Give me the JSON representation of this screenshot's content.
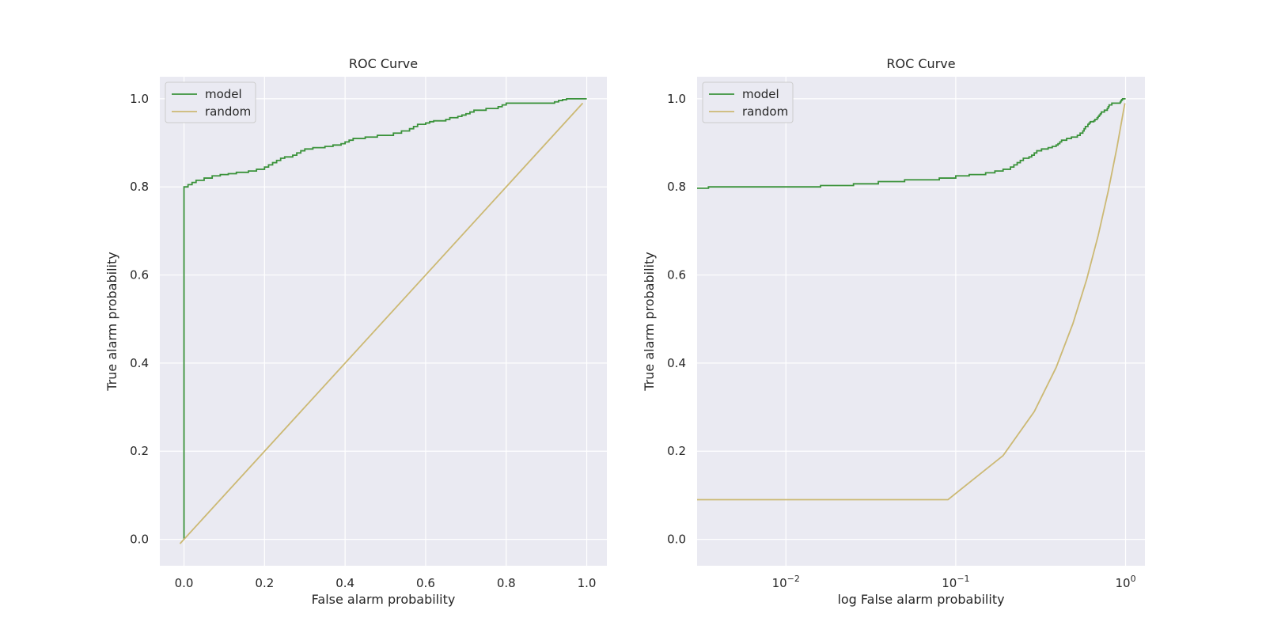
{
  "chart_data": [
    {
      "type": "line",
      "title": "ROC Curve",
      "xlabel": "False alarm probability",
      "ylabel": "True alarm probability",
      "xscale": "linear",
      "xlim": [
        -0.06,
        1.05
      ],
      "ylim": [
        -0.06,
        1.05
      ],
      "xticks": [
        0.0,
        0.2,
        0.4,
        0.6,
        0.8,
        1.0
      ],
      "xtick_labels": [
        "0.0",
        "0.2",
        "0.4",
        "0.6",
        "0.8",
        "1.0"
      ],
      "yticks": [
        0.0,
        0.2,
        0.4,
        0.6,
        0.8,
        1.0
      ],
      "ytick_labels": [
        "0.0",
        "0.2",
        "0.4",
        "0.6",
        "0.8",
        "1.0"
      ],
      "grid": true,
      "legend": "upper-left",
      "series": [
        {
          "name": "model",
          "color": "#3a923a",
          "step": true,
          "x": [
            0.0,
            0.0,
            0.01,
            0.02,
            0.03,
            0.05,
            0.07,
            0.09,
            0.11,
            0.13,
            0.16,
            0.18,
            0.2,
            0.21,
            0.22,
            0.23,
            0.24,
            0.25,
            0.27,
            0.28,
            0.29,
            0.3,
            0.32,
            0.35,
            0.37,
            0.39,
            0.4,
            0.41,
            0.42,
            0.45,
            0.48,
            0.52,
            0.54,
            0.56,
            0.57,
            0.58,
            0.6,
            0.61,
            0.62,
            0.65,
            0.66,
            0.68,
            0.69,
            0.7,
            0.71,
            0.72,
            0.75,
            0.78,
            0.79,
            0.8,
            0.83,
            0.87,
            0.91,
            0.92,
            0.93,
            0.94,
            0.95,
            0.96,
            0.98,
            1.0
          ],
          "y": [
            0.0,
            0.8,
            0.805,
            0.81,
            0.815,
            0.82,
            0.825,
            0.828,
            0.83,
            0.833,
            0.836,
            0.84,
            0.845,
            0.85,
            0.855,
            0.86,
            0.865,
            0.868,
            0.872,
            0.877,
            0.882,
            0.886,
            0.889,
            0.892,
            0.895,
            0.898,
            0.902,
            0.906,
            0.91,
            0.913,
            0.917,
            0.922,
            0.927,
            0.932,
            0.937,
            0.942,
            0.945,
            0.948,
            0.95,
            0.953,
            0.957,
            0.96,
            0.963,
            0.966,
            0.97,
            0.974,
            0.978,
            0.982,
            0.986,
            0.99,
            0.99,
            0.99,
            0.99,
            0.993,
            0.996,
            0.998,
            1.0,
            1.0,
            1.0,
            1.0
          ]
        },
        {
          "name": "random",
          "color": "#ccb974",
          "step": false,
          "x": [
            -0.01,
            0.99
          ],
          "y": [
            -0.01,
            0.99
          ]
        }
      ]
    },
    {
      "type": "line",
      "title": "ROC Curve",
      "xlabel": "log False alarm probability",
      "ylabel": "True alarm probability",
      "xscale": "log",
      "xlim": [
        0.003,
        1.3
      ],
      "ylim": [
        -0.06,
        1.05
      ],
      "xticks": [
        0.01,
        0.1,
        1.0
      ],
      "xtick_labels": [
        {
          "base": "10",
          "exp": "−2"
        },
        {
          "base": "10",
          "exp": "−1"
        },
        {
          "base": "10",
          "exp": "0"
        }
      ],
      "yticks": [
        0.0,
        0.2,
        0.4,
        0.6,
        0.8,
        1.0
      ],
      "ytick_labels": [
        "0.0",
        "0.2",
        "0.4",
        "0.6",
        "0.8",
        "1.0"
      ],
      "grid": true,
      "legend": "upper-left",
      "series": [
        {
          "name": "model",
          "color": "#3a923a",
          "step": true,
          "x": [
            0.003,
            0.0035,
            0.016,
            0.025,
            0.035,
            0.05,
            0.08,
            0.1,
            0.12,
            0.15,
            0.17,
            0.19,
            0.21,
            0.22,
            0.23,
            0.24,
            0.25,
            0.27,
            0.28,
            0.29,
            0.3,
            0.32,
            0.35,
            0.37,
            0.39,
            0.4,
            0.41,
            0.42,
            0.45,
            0.48,
            0.52,
            0.54,
            0.56,
            0.57,
            0.58,
            0.6,
            0.61,
            0.62,
            0.65,
            0.66,
            0.68,
            0.69,
            0.7,
            0.71,
            0.72,
            0.75,
            0.78,
            0.79,
            0.8,
            0.83,
            0.87,
            0.91,
            0.92,
            0.93,
            0.94,
            0.95,
            0.96,
            0.98,
            1.0
          ],
          "y": [
            0.797,
            0.8,
            0.803,
            0.807,
            0.812,
            0.816,
            0.82,
            0.825,
            0.828,
            0.832,
            0.836,
            0.84,
            0.845,
            0.85,
            0.855,
            0.86,
            0.865,
            0.868,
            0.872,
            0.877,
            0.882,
            0.886,
            0.889,
            0.892,
            0.895,
            0.898,
            0.902,
            0.906,
            0.91,
            0.913,
            0.917,
            0.922,
            0.927,
            0.932,
            0.937,
            0.942,
            0.945,
            0.948,
            0.95,
            0.953,
            0.957,
            0.96,
            0.963,
            0.966,
            0.97,
            0.974,
            0.978,
            0.982,
            0.986,
            0.99,
            0.99,
            0.99,
            0.99,
            0.993,
            0.996,
            0.998,
            1.0,
            1.0,
            1.0
          ]
        },
        {
          "name": "random",
          "color": "#ccb974",
          "step": false,
          "x": [
            0.003,
            0.09,
            0.19,
            0.29,
            0.39,
            0.49,
            0.59,
            0.69,
            0.79,
            0.89,
            0.99
          ],
          "y": [
            0.09,
            0.09,
            0.19,
            0.29,
            0.39,
            0.49,
            0.59,
            0.69,
            0.79,
            0.89,
            0.99
          ]
        }
      ]
    }
  ]
}
